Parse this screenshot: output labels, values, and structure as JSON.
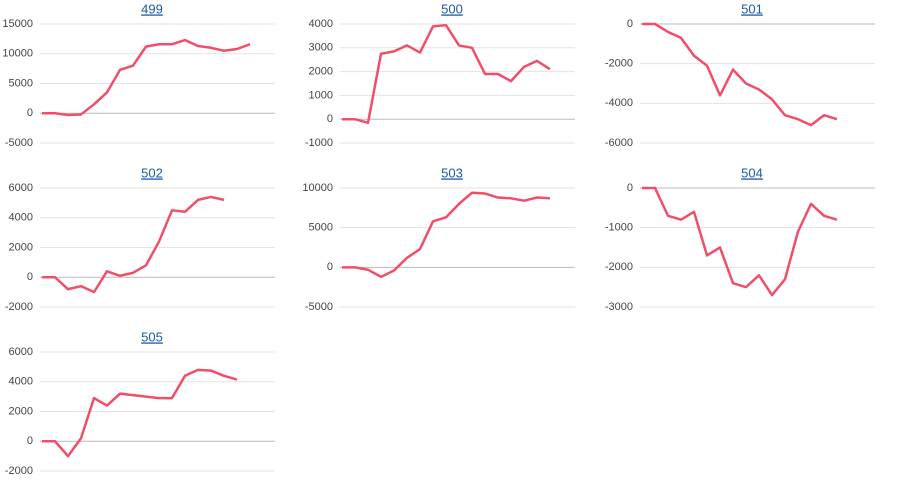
{
  "chart_data": [
    {
      "type": "line",
      "title": "499",
      "color": "#f04e6b",
      "grid": true,
      "ylim": [
        -5000,
        15000
      ],
      "yticks": [
        -5000,
        0,
        5000,
        10000,
        15000
      ],
      "values": [
        0,
        0,
        -300,
        -200,
        1500,
        3500,
        7300,
        8000,
        11200,
        11600,
        11600,
        12300,
        11300,
        11000,
        10500,
        10800,
        11600
      ]
    },
    {
      "type": "line",
      "title": "500",
      "color": "#f04e6b",
      "grid": true,
      "ylim": [
        -1000,
        4000
      ],
      "yticks": [
        -1000,
        0,
        1000,
        2000,
        3000,
        4000
      ],
      "values": [
        0,
        0,
        -150,
        2750,
        2850,
        3100,
        2800,
        3900,
        3950,
        3100,
        3000,
        1900,
        1900,
        1600,
        2200,
        2450,
        2100
      ]
    },
    {
      "type": "line",
      "title": "501",
      "color": "#f04e6b",
      "grid": true,
      "ylim": [
        -6000,
        0
      ],
      "yticks": [
        -6000,
        -4000,
        -2000,
        0
      ],
      "values": [
        0,
        0,
        -400,
        -700,
        -1600,
        -2100,
        -3600,
        -2300,
        -3000,
        -3300,
        -3800,
        -4600,
        -4800,
        -5100,
        -4600,
        -4800
      ]
    },
    {
      "type": "line",
      "title": "502",
      "color": "#f04e6b",
      "grid": true,
      "ylim": [
        -2000,
        6000
      ],
      "yticks": [
        -2000,
        0,
        2000,
        4000,
        6000
      ],
      "values": [
        0,
        0,
        -800,
        -600,
        -1000,
        400,
        100,
        300,
        800,
        2400,
        4500,
        4400,
        5200,
        5400,
        5200
      ]
    },
    {
      "type": "line",
      "title": "503",
      "color": "#f04e6b",
      "grid": true,
      "ylim": [
        -5000,
        10000
      ],
      "yticks": [
        -5000,
        0,
        5000,
        10000
      ],
      "values": [
        0,
        0,
        -300,
        -1200,
        -400,
        1200,
        2300,
        5800,
        6300,
        8000,
        9400,
        9300,
        8800,
        8700,
        8400,
        8800,
        8700
      ]
    },
    {
      "type": "line",
      "title": "504",
      "color": "#f04e6b",
      "grid": true,
      "ylim": [
        -3000,
        0
      ],
      "yticks": [
        -3000,
        -2000,
        -1000,
        0
      ],
      "values": [
        0,
        0,
        -700,
        -800,
        -600,
        -1700,
        -1500,
        -2400,
        -2500,
        -2200,
        -2700,
        -2300,
        -1100,
        -400,
        -700,
        -800
      ]
    },
    {
      "type": "line",
      "title": "505",
      "color": "#f04e6b",
      "grid": true,
      "ylim": [
        -2000,
        6000
      ],
      "yticks": [
        -2000,
        0,
        2000,
        4000,
        6000
      ],
      "values": [
        0,
        0,
        -1000,
        200,
        2900,
        2400,
        3200,
        3100,
        3000,
        2900,
        2900,
        4400,
        4800,
        4750,
        4400,
        4150
      ]
    }
  ]
}
